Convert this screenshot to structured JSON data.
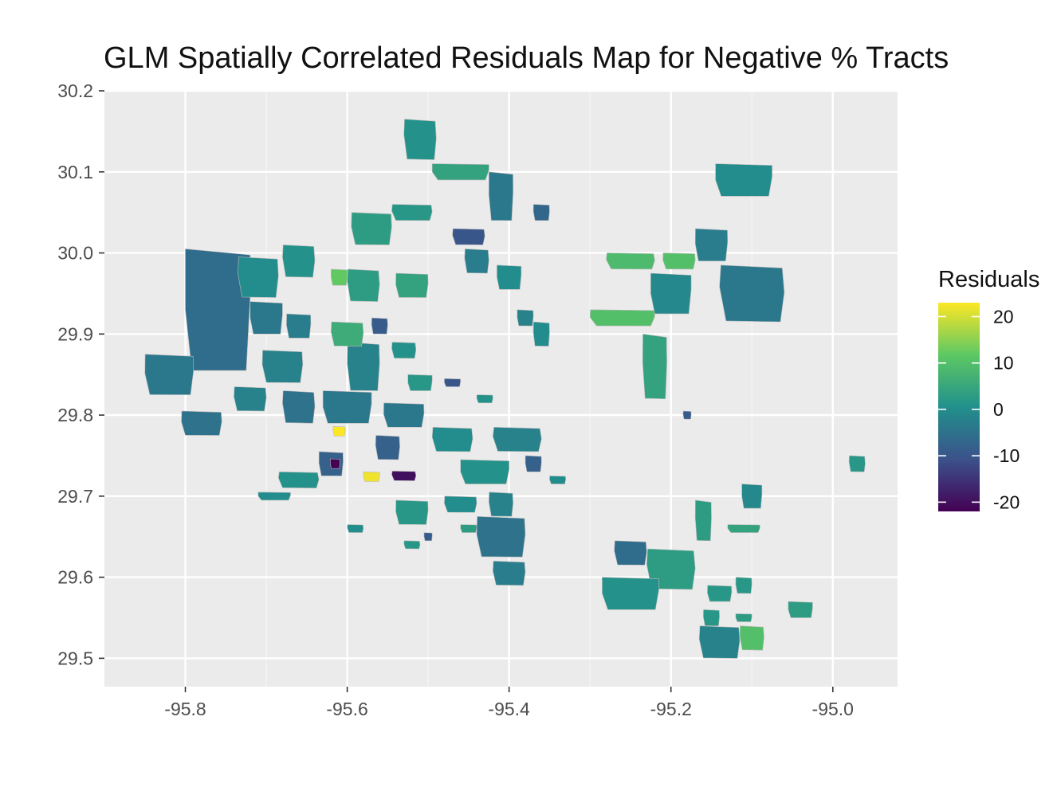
{
  "title": "GLM Spatially Correlated Residuals Map for Negative % Tracts",
  "chart_data": {
    "type": "map",
    "title": "GLM Spatially Correlated Residuals Map for Negative % Tracts",
    "xlabel": "",
    "ylabel": "",
    "xlim": [
      -95.9,
      -94.92
    ],
    "ylim": [
      29.465,
      30.2
    ],
    "x_ticks": [
      -95.8,
      -95.6,
      -95.4,
      -95.2,
      -95.0
    ],
    "x_tick_labels": [
      "-95.8",
      "-95.6",
      "-95.4",
      "-95.2",
      "-95.0"
    ],
    "y_ticks": [
      29.5,
      29.6,
      29.7,
      29.8,
      29.9,
      30.0,
      30.1,
      30.2
    ],
    "y_tick_labels": [
      "29.5",
      "29.6",
      "29.7",
      "29.8",
      "29.9",
      "30.0",
      "30.1",
      "30.2"
    ],
    "grid": true,
    "panel_background": "#ebebeb",
    "legend": {
      "title": "Residuals",
      "placement": "right",
      "range": [
        -22,
        23
      ],
      "breaks": [
        20,
        10,
        0,
        -10,
        -20
      ],
      "labels": [
        "20",
        "10",
        "0",
        "-10",
        "-20"
      ],
      "colors": [
        "#440154",
        "#3b528b",
        "#21908c",
        "#5dc863",
        "#fde725"
      ]
    },
    "tracts": [
      {
        "lon": -95.76,
        "lat": 29.93,
        "w": 0.08,
        "h": 0.15,
        "value": -6
      },
      {
        "lon": -95.82,
        "lat": 29.85,
        "w": 0.06,
        "h": 0.05,
        "value": -4
      },
      {
        "lon": -95.78,
        "lat": 29.79,
        "w": 0.05,
        "h": 0.03,
        "value": -5
      },
      {
        "lon": -95.71,
        "lat": 29.97,
        "w": 0.05,
        "h": 0.05,
        "value": 0
      },
      {
        "lon": -95.66,
        "lat": 29.99,
        "w": 0.04,
        "h": 0.04,
        "value": 1
      },
      {
        "lon": -95.7,
        "lat": 29.92,
        "w": 0.04,
        "h": 0.04,
        "value": -4
      },
      {
        "lon": -95.66,
        "lat": 29.91,
        "w": 0.03,
        "h": 0.03,
        "value": -3
      },
      {
        "lon": -95.68,
        "lat": 29.86,
        "w": 0.05,
        "h": 0.04,
        "value": -2
      },
      {
        "lon": -95.72,
        "lat": 29.82,
        "w": 0.04,
        "h": 0.03,
        "value": -2
      },
      {
        "lon": -95.66,
        "lat": 29.81,
        "w": 0.04,
        "h": 0.04,
        "value": -5
      },
      {
        "lon": -95.6,
        "lat": 29.81,
        "w": 0.06,
        "h": 0.04,
        "value": -4
      },
      {
        "lon": -95.53,
        "lat": 29.8,
        "w": 0.05,
        "h": 0.03,
        "value": -4
      },
      {
        "lon": -95.58,
        "lat": 29.86,
        "w": 0.04,
        "h": 0.06,
        "value": -2
      },
      {
        "lon": -95.6,
        "lat": 29.9,
        "w": 0.04,
        "h": 0.03,
        "value": 6
      },
      {
        "lon": -95.58,
        "lat": 29.96,
        "w": 0.04,
        "h": 0.04,
        "value": 3
      },
      {
        "lon": -95.61,
        "lat": 29.97,
        "w": 0.02,
        "h": 0.02,
        "value": 12
      },
      {
        "lon": -95.52,
        "lat": 29.96,
        "w": 0.04,
        "h": 0.03,
        "value": 4
      },
      {
        "lon": -95.57,
        "lat": 30.03,
        "w": 0.05,
        "h": 0.04,
        "value": 3
      },
      {
        "lon": -95.52,
        "lat": 30.05,
        "w": 0.05,
        "h": 0.02,
        "value": 2
      },
      {
        "lon": -95.51,
        "lat": 30.14,
        "w": 0.04,
        "h": 0.05,
        "value": 1
      },
      {
        "lon": -95.46,
        "lat": 30.1,
        "w": 0.07,
        "h": 0.02,
        "value": 4
      },
      {
        "lon": -95.41,
        "lat": 30.07,
        "w": 0.03,
        "h": 0.06,
        "value": -4
      },
      {
        "lon": -95.36,
        "lat": 30.05,
        "w": 0.02,
        "h": 0.02,
        "value": -7
      },
      {
        "lon": -95.45,
        "lat": 30.02,
        "w": 0.04,
        "h": 0.02,
        "value": -10
      },
      {
        "lon": -95.44,
        "lat": 29.99,
        "w": 0.03,
        "h": 0.03,
        "value": -3
      },
      {
        "lon": -95.4,
        "lat": 29.97,
        "w": 0.03,
        "h": 0.03,
        "value": 0
      },
      {
        "lon": -95.38,
        "lat": 29.92,
        "w": 0.02,
        "h": 0.02,
        "value": -2
      },
      {
        "lon": -95.36,
        "lat": 29.9,
        "w": 0.02,
        "h": 0.03,
        "value": 0
      },
      {
        "lon": -95.56,
        "lat": 29.91,
        "w": 0.02,
        "h": 0.02,
        "value": -9
      },
      {
        "lon": -95.53,
        "lat": 29.88,
        "w": 0.03,
        "h": 0.02,
        "value": 1
      },
      {
        "lon": -95.51,
        "lat": 29.84,
        "w": 0.03,
        "h": 0.02,
        "value": 2
      },
      {
        "lon": -95.47,
        "lat": 29.84,
        "w": 0.02,
        "h": 0.01,
        "value": -10
      },
      {
        "lon": -95.43,
        "lat": 29.82,
        "w": 0.02,
        "h": 0.01,
        "value": 1
      },
      {
        "lon": -95.47,
        "lat": 29.77,
        "w": 0.05,
        "h": 0.03,
        "value": 0
      },
      {
        "lon": -95.39,
        "lat": 29.77,
        "w": 0.06,
        "h": 0.03,
        "value": -2
      },
      {
        "lon": -95.43,
        "lat": 29.73,
        "w": 0.06,
        "h": 0.03,
        "value": 1
      },
      {
        "lon": -95.37,
        "lat": 29.74,
        "w": 0.02,
        "h": 0.02,
        "value": -8
      },
      {
        "lon": -95.34,
        "lat": 29.72,
        "w": 0.02,
        "h": 0.01,
        "value": 0
      },
      {
        "lon": -95.55,
        "lat": 29.76,
        "w": 0.03,
        "h": 0.03,
        "value": -8
      },
      {
        "lon": -95.53,
        "lat": 29.725,
        "w": 0.03,
        "h": 0.012,
        "value": -20
      },
      {
        "lon": -95.57,
        "lat": 29.724,
        "w": 0.02,
        "h": 0.012,
        "value": 22
      },
      {
        "lon": -95.62,
        "lat": 29.74,
        "w": 0.03,
        "h": 0.03,
        "value": -8
      },
      {
        "lon": -95.615,
        "lat": 29.74,
        "w": 0.012,
        "h": 0.012,
        "value": -22
      },
      {
        "lon": -95.61,
        "lat": 29.78,
        "w": 0.015,
        "h": 0.012,
        "value": 23
      },
      {
        "lon": -95.66,
        "lat": 29.72,
        "w": 0.05,
        "h": 0.02,
        "value": 1
      },
      {
        "lon": -95.69,
        "lat": 29.7,
        "w": 0.04,
        "h": 0.01,
        "value": 0
      },
      {
        "lon": -95.52,
        "lat": 29.68,
        "w": 0.04,
        "h": 0.03,
        "value": 2
      },
      {
        "lon": -95.46,
        "lat": 29.69,
        "w": 0.04,
        "h": 0.02,
        "value": 0
      },
      {
        "lon": -95.41,
        "lat": 29.69,
        "w": 0.03,
        "h": 0.03,
        "value": -2
      },
      {
        "lon": -95.52,
        "lat": 29.64,
        "w": 0.02,
        "h": 0.01,
        "value": 2
      },
      {
        "lon": -95.5,
        "lat": 29.65,
        "w": 0.01,
        "h": 0.01,
        "value": -9
      },
      {
        "lon": -95.45,
        "lat": 29.66,
        "w": 0.02,
        "h": 0.01,
        "value": 3
      },
      {
        "lon": -95.41,
        "lat": 29.65,
        "w": 0.06,
        "h": 0.05,
        "value": -5
      },
      {
        "lon": -95.4,
        "lat": 29.605,
        "w": 0.04,
        "h": 0.03,
        "value": -3
      },
      {
        "lon": -95.59,
        "lat": 29.66,
        "w": 0.02,
        "h": 0.01,
        "value": 0
      },
      {
        "lon": -95.11,
        "lat": 30.09,
        "w": 0.07,
        "h": 0.04,
        "value": 0
      },
      {
        "lon": -95.15,
        "lat": 30.01,
        "w": 0.04,
        "h": 0.04,
        "value": -3
      },
      {
        "lon": -95.19,
        "lat": 29.99,
        "w": 0.04,
        "h": 0.02,
        "value": 10
      },
      {
        "lon": -95.25,
        "lat": 29.99,
        "w": 0.06,
        "h": 0.02,
        "value": 9
      },
      {
        "lon": -95.1,
        "lat": 29.95,
        "w": 0.08,
        "h": 0.07,
        "value": -4
      },
      {
        "lon": -95.2,
        "lat": 29.95,
        "w": 0.05,
        "h": 0.05,
        "value": -1
      },
      {
        "lon": -95.26,
        "lat": 29.92,
        "w": 0.08,
        "h": 0.02,
        "value": 10
      },
      {
        "lon": -95.22,
        "lat": 29.86,
        "w": 0.03,
        "h": 0.08,
        "value": 4
      },
      {
        "lon": -95.18,
        "lat": 29.8,
        "w": 0.01,
        "h": 0.01,
        "value": -9
      },
      {
        "lon": -94.97,
        "lat": 29.74,
        "w": 0.02,
        "h": 0.02,
        "value": 2
      },
      {
        "lon": -95.1,
        "lat": 29.7,
        "w": 0.025,
        "h": 0.03,
        "value": -1
      },
      {
        "lon": -95.11,
        "lat": 29.66,
        "w": 0.04,
        "h": 0.01,
        "value": 4
      },
      {
        "lon": -95.16,
        "lat": 29.67,
        "w": 0.02,
        "h": 0.05,
        "value": 3
      },
      {
        "lon": -95.25,
        "lat": 29.63,
        "w": 0.04,
        "h": 0.03,
        "value": -6
      },
      {
        "lon": -95.2,
        "lat": 29.61,
        "w": 0.06,
        "h": 0.05,
        "value": 3
      },
      {
        "lon": -95.25,
        "lat": 29.58,
        "w": 0.07,
        "h": 0.04,
        "value": 1
      },
      {
        "lon": -95.14,
        "lat": 29.58,
        "w": 0.03,
        "h": 0.02,
        "value": 2
      },
      {
        "lon": -95.11,
        "lat": 29.59,
        "w": 0.02,
        "h": 0.02,
        "value": 2
      },
      {
        "lon": -95.14,
        "lat": 29.52,
        "w": 0.05,
        "h": 0.04,
        "value": -2
      },
      {
        "lon": -95.1,
        "lat": 29.525,
        "w": 0.03,
        "h": 0.03,
        "value": 10
      },
      {
        "lon": -95.04,
        "lat": 29.56,
        "w": 0.03,
        "h": 0.02,
        "value": 3
      },
      {
        "lon": -95.11,
        "lat": 29.55,
        "w": 0.02,
        "h": 0.01,
        "value": 3
      },
      {
        "lon": -95.15,
        "lat": 29.55,
        "w": 0.02,
        "h": 0.02,
        "value": 2
      }
    ]
  }
}
